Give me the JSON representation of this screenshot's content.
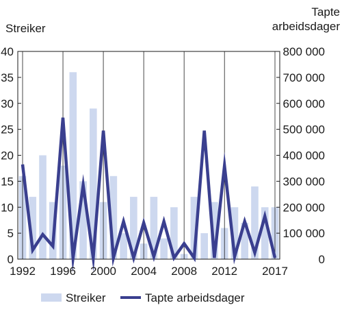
{
  "colors": {
    "bar": "#cdd8ef",
    "line": "#3a3f8f",
    "axis": "#1a1a1a",
    "grid": "#1a1a1a"
  },
  "chart_data": {
    "type": "bar",
    "left_axis_title": "Streiker",
    "right_axis_title_line1": "Tapte",
    "right_axis_title_line2": "arbeidsdager",
    "x": [
      1992,
      1993,
      1994,
      1995,
      1996,
      1997,
      1998,
      1999,
      2000,
      2001,
      2002,
      2003,
      2004,
      2005,
      2006,
      2007,
      2008,
      2009,
      2010,
      2011,
      2012,
      2013,
      2014,
      2015,
      2016,
      2017
    ],
    "x_tick_labels": [
      "1992",
      "1996",
      "2000",
      "2004",
      "2008",
      "2012",
      "2017"
    ],
    "left_ticks": [
      "0",
      "5",
      "10",
      "15",
      "20",
      "25",
      "30",
      "35",
      "40"
    ],
    "right_ticks": [
      "0",
      "100 000",
      "200 000",
      "300 000",
      "400 000",
      "500 000",
      "600 000",
      "700 000",
      "800 000"
    ],
    "ylim_left": [
      0,
      40
    ],
    "ylim_right": [
      0,
      800000
    ],
    "grid": "vertical",
    "legend_position": "bottom",
    "series": [
      {
        "name": "Streiker",
        "kind": "bar",
        "axis": "left",
        "values": [
          16,
          12,
          20,
          11,
          18,
          36,
          15,
          29,
          11,
          16,
          5,
          12,
          3,
          12,
          4,
          10,
          1,
          12,
          5,
          11,
          6,
          10,
          7,
          14,
          10,
          10
        ]
      },
      {
        "name": "Tapte arbeidsdager",
        "kind": "line",
        "axis": "right",
        "values": [
          365000,
          35000,
          95000,
          50000,
          545000,
          5000,
          285000,
          5000,
          495000,
          5000,
          145000,
          5000,
          140000,
          10000,
          145000,
          5000,
          60000,
          5000,
          495000,
          5000,
          360000,
          10000,
          145000,
          25000,
          165000,
          5000
        ]
      }
    ]
  }
}
